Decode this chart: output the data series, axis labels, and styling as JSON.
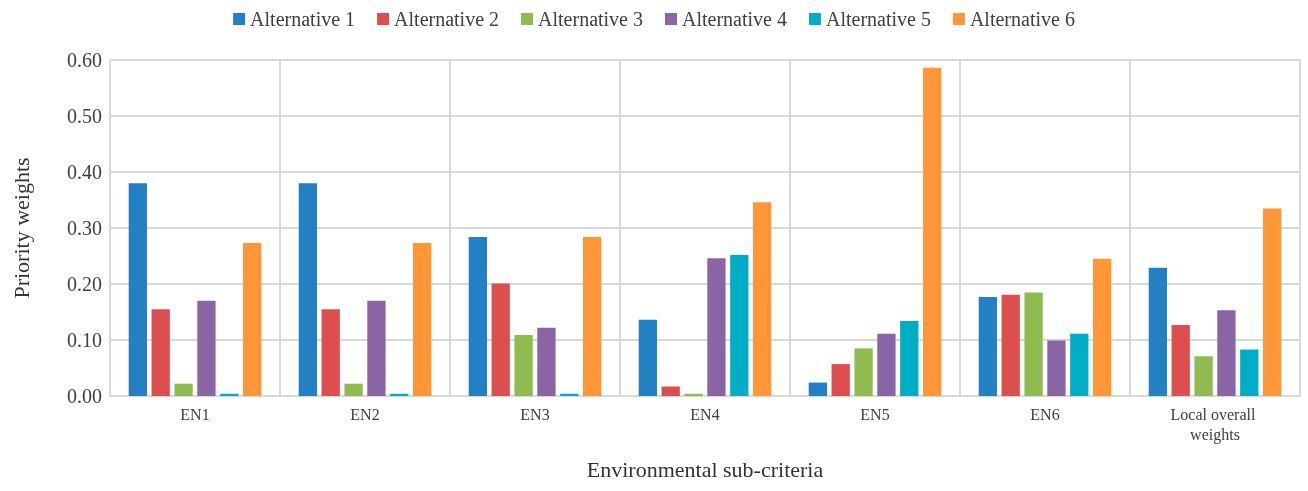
{
  "chart_data": {
    "type": "bar",
    "xlabel": "Environmental sub-criteria",
    "ylabel": "Priority weights",
    "categories": [
      "EN1",
      "EN2",
      "EN3",
      "EN4",
      "EN5",
      "EN6",
      "Local overall weights"
    ],
    "series": [
      {
        "name": "Alternative 1",
        "color": "#2381c3",
        "values": [
          0.38,
          0.38,
          0.284,
          0.136,
          0.024,
          0.177,
          0.229
        ]
      },
      {
        "name": "Alternative 2",
        "color": "#dd4f4f",
        "values": [
          0.155,
          0.155,
          0.201,
          0.017,
          0.057,
          0.181,
          0.127
        ]
      },
      {
        "name": "Alternative 3",
        "color": "#8fbb50",
        "values": [
          0.022,
          0.022,
          0.109,
          0.004,
          0.085,
          0.185,
          0.071
        ]
      },
      {
        "name": "Alternative 4",
        "color": "#8b64a5",
        "values": [
          0.17,
          0.17,
          0.122,
          0.246,
          0.111,
          0.099,
          0.153
        ]
      },
      {
        "name": "Alternative 5",
        "color": "#00acc6",
        "values": [
          0.004,
          0.004,
          0.004,
          0.252,
          0.134,
          0.111,
          0.083
        ]
      },
      {
        "name": "Alternative 6",
        "color": "#ff9638",
        "values": [
          0.273,
          0.273,
          0.284,
          0.346,
          0.586,
          0.245,
          0.335
        ]
      }
    ],
    "ylim": [
      0,
      0.6
    ],
    "yticks": [
      {
        "value": 0,
        "label": "0.00"
      },
      {
        "value": 0.1,
        "label": "0.10"
      },
      {
        "value": 0.2,
        "label": "0.20"
      },
      {
        "value": 0.3,
        "label": "0.30"
      },
      {
        "value": 0.4,
        "label": "0.40"
      },
      {
        "value": 0.5,
        "label": "0.50"
      },
      {
        "value": 0.6,
        "label": "0.60"
      }
    ],
    "grid": true,
    "legend": "top"
  }
}
